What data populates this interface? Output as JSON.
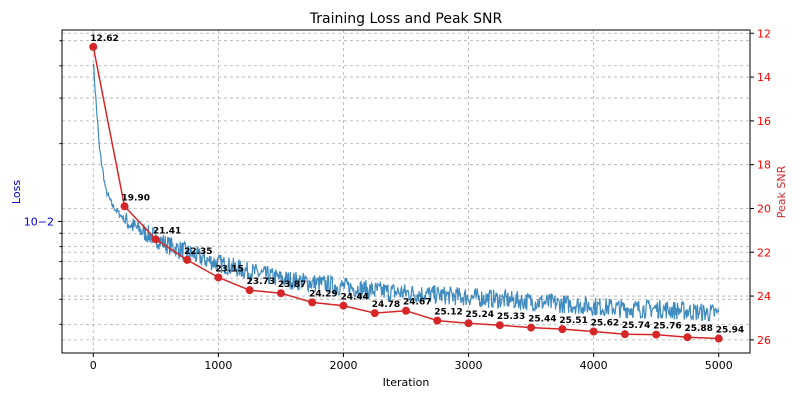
{
  "chart_data": {
    "type": "line",
    "title": "Training Loss and Peak SNR",
    "xlabel": "Iteration",
    "ylabel_left": "Loss",
    "ylabel_right": "Peak SNR",
    "left_axis_scale": "log",
    "grid": true,
    "x_ticks": [
      "0",
      "1000",
      "2000",
      "3000",
      "4000",
      "5000"
    ],
    "x_tick_values": [
      0,
      1000,
      2000,
      3000,
      4000,
      5000
    ],
    "xlim": [
      -250,
      5250
    ],
    "left_major_tick_label": "10−2",
    "left_major_tick_value": 0.01,
    "ylim_left": [
      0.0031,
      0.055
    ],
    "right_ticks": [
      "12",
      "14",
      "16",
      "18",
      "20",
      "22",
      "24",
      "26"
    ],
    "right_tick_values": [
      12,
      14,
      16,
      18,
      20,
      22,
      24,
      26
    ],
    "ylim_right": [
      26.6,
      11.85
    ],
    "colors": {
      "loss": "#1f77b4",
      "snr": "#d62728",
      "left_axis": "#0000cc",
      "right_axis": "#ff0000"
    },
    "series": [
      {
        "name": "Loss",
        "axis": "left",
        "x": [
          0,
          20,
          50,
          100,
          150,
          200,
          250,
          300,
          400,
          500,
          600,
          750,
          900,
          1000,
          1250,
          1500,
          1750,
          2000,
          2250,
          2500,
          2750,
          3000,
          3250,
          3500,
          3750,
          4000,
          4250,
          4500,
          4750,
          5000
        ],
        "values": [
          0.042,
          0.03,
          0.019,
          0.0132,
          0.0116,
          0.0108,
          0.0102,
          0.0097,
          0.0091,
          0.0086,
          0.0081,
          0.0076,
          0.0071,
          0.0069,
          0.0064,
          0.006,
          0.0058,
          0.0056,
          0.0054,
          0.0053,
          0.0052,
          0.0051,
          0.005,
          0.0049,
          0.0048,
          0.0047,
          0.0046,
          0.0046,
          0.0045,
          0.0044
        ]
      },
      {
        "name": "Peak SNR",
        "axis": "right",
        "x": [
          0,
          250,
          500,
          750,
          1000,
          1250,
          1500,
          1750,
          2000,
          2250,
          2500,
          2750,
          3000,
          3250,
          3500,
          3750,
          4000,
          4250,
          4500,
          4750,
          5000
        ],
        "values": [
          12.62,
          19.9,
          21.41,
          22.35,
          23.15,
          23.73,
          23.87,
          24.29,
          24.44,
          24.78,
          24.67,
          25.12,
          25.24,
          25.33,
          25.44,
          25.51,
          25.62,
          25.74,
          25.76,
          25.88,
          25.94
        ],
        "labels": [
          "12.62",
          "19.90",
          "21.41",
          "22.35",
          "23.15",
          "23.73",
          "23.87",
          "24.29",
          "24.44",
          "24.78",
          "24.67",
          "25.12",
          "25.24",
          "25.33",
          "25.44",
          "25.51",
          "25.62",
          "25.74",
          "25.76",
          "25.88",
          "25.94"
        ]
      }
    ]
  }
}
